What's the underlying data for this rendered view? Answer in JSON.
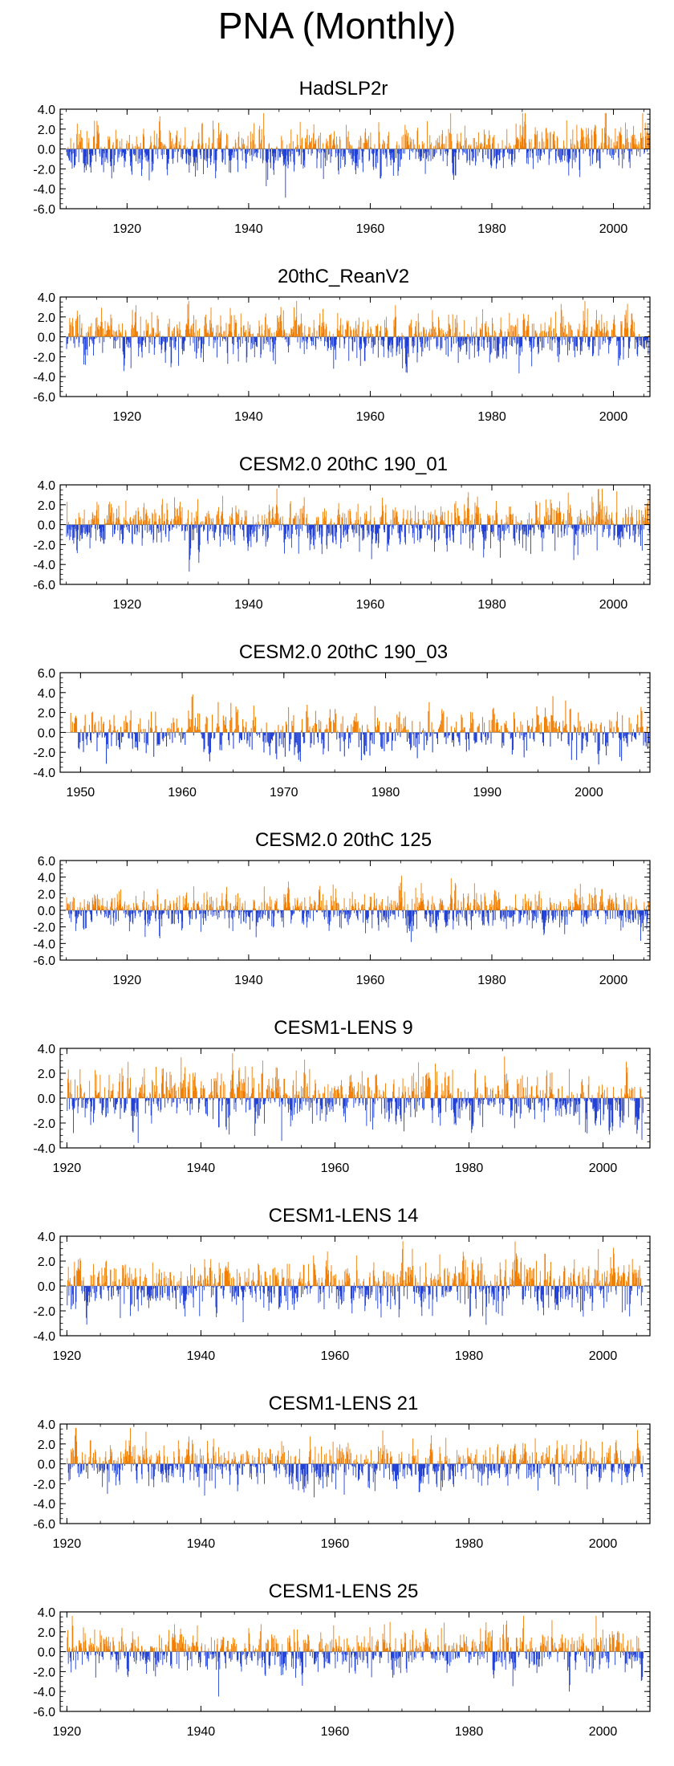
{
  "title": "PNA (Monthly)",
  "colors": {
    "positive": "#f07c00",
    "negative": "#1f3fd6",
    "axis": "#000000"
  },
  "chart_data": [
    {
      "type": "bar",
      "title": "HadSLP2r",
      "xlim": [
        1909,
        2006
      ],
      "ylim": [
        -6,
        4
      ],
      "yticks": [
        4,
        2,
        0,
        -2,
        -4,
        -6
      ],
      "yticklabels": [
        "4.0",
        "2.0",
        "0.0",
        "-2.0",
        "-4.0",
        "-6.0"
      ],
      "xticks": [
        1920,
        1940,
        1960,
        1980,
        2000
      ],
      "xticklabels": [
        "1920",
        "1940",
        "1960",
        "1980",
        "2000"
      ],
      "series": {
        "start_year": 1910,
        "end_year": 2005,
        "freq": "monthly",
        "amplitude": 1.3,
        "seed": 11
      }
    },
    {
      "type": "bar",
      "title": "20thC_ReanV2",
      "xlim": [
        1909,
        2006
      ],
      "ylim": [
        -6,
        4
      ],
      "yticks": [
        4,
        2,
        0,
        -2,
        -4,
        -6
      ],
      "yticklabels": [
        "4.0",
        "2.0",
        "0.0",
        "-2.0",
        "-4.0",
        "-6.0"
      ],
      "xticks": [
        1920,
        1940,
        1960,
        1980,
        2000
      ],
      "xticklabels": [
        "1920",
        "1940",
        "1960",
        "1980",
        "2000"
      ],
      "series": {
        "start_year": 1910,
        "end_year": 2005,
        "freq": "monthly",
        "amplitude": 1.3,
        "seed": 23
      }
    },
    {
      "type": "bar",
      "title": "CESM2.0 20thC 190_01",
      "xlim": [
        1909,
        2006
      ],
      "ylim": [
        -6,
        4
      ],
      "yticks": [
        4,
        2,
        0,
        -2,
        -4,
        -6
      ],
      "yticklabels": [
        "4.0",
        "2.0",
        "0.0",
        "-2.0",
        "-4.0",
        "-6.0"
      ],
      "xticks": [
        1920,
        1940,
        1960,
        1980,
        2000
      ],
      "xticklabels": [
        "1920",
        "1940",
        "1960",
        "1980",
        "2000"
      ],
      "series": {
        "start_year": 1910,
        "end_year": 2005,
        "freq": "monthly",
        "amplitude": 1.3,
        "seed": 37
      }
    },
    {
      "type": "bar",
      "title": "CESM2.0 20thC 190_03",
      "xlim": [
        1948,
        2006
      ],
      "ylim": [
        -4,
        6
      ],
      "yticks": [
        6,
        4,
        2,
        0,
        -2,
        -4
      ],
      "yticklabels": [
        "6.0",
        "4.0",
        "2.0",
        "0.0",
        "-2.0",
        "-4.0"
      ],
      "xticks": [
        1950,
        1960,
        1970,
        1980,
        1990,
        2000
      ],
      "xticklabels": [
        "1950",
        "1960",
        "1970",
        "1980",
        "1990",
        "2000"
      ],
      "series": {
        "start_year": 1949,
        "end_year": 2005,
        "freq": "monthly",
        "amplitude": 1.4,
        "seed": 41
      }
    },
    {
      "type": "bar",
      "title": "CESM2.0 20thC 125",
      "xlim": [
        1909,
        2006
      ],
      "ylim": [
        -6,
        6
      ],
      "yticks": [
        6,
        4,
        2,
        0,
        -2,
        -4,
        -6
      ],
      "yticklabels": [
        "6.0",
        "4.0",
        "2.0",
        "0.0",
        "-2.0",
        "-4.0",
        "-6.0"
      ],
      "xticks": [
        1920,
        1940,
        1960,
        1980,
        2000
      ],
      "xticklabels": [
        "1920",
        "1940",
        "1960",
        "1980",
        "2000"
      ],
      "series": {
        "start_year": 1910,
        "end_year": 2005,
        "freq": "monthly",
        "amplitude": 1.3,
        "seed": 53
      }
    },
    {
      "type": "bar",
      "title": "CESM1-LENS 9",
      "xlim": [
        1919,
        2007
      ],
      "ylim": [
        -4,
        4
      ],
      "yticks": [
        4,
        2,
        0,
        -2,
        -4
      ],
      "yticklabels": [
        "4.0",
        "2.0",
        "0.0",
        "-2.0",
        "-4.0"
      ],
      "xticks": [
        1920,
        1940,
        1960,
        1980,
        2000
      ],
      "xticklabels": [
        "1920",
        "1940",
        "1960",
        "1980",
        "2000"
      ],
      "series": {
        "start_year": 1920,
        "end_year": 2005,
        "freq": "monthly",
        "amplitude": 1.2,
        "seed": 67
      }
    },
    {
      "type": "bar",
      "title": "CESM1-LENS 14",
      "xlim": [
        1919,
        2007
      ],
      "ylim": [
        -4,
        4
      ],
      "yticks": [
        4,
        2,
        0,
        -2,
        -4
      ],
      "yticklabels": [
        "4.0",
        "2.0",
        "0.0",
        "-2.0",
        "-4.0"
      ],
      "xticks": [
        1920,
        1940,
        1960,
        1980,
        2000
      ],
      "xticklabels": [
        "1920",
        "1940",
        "1960",
        "1980",
        "2000"
      ],
      "series": {
        "start_year": 1920,
        "end_year": 2005,
        "freq": "monthly",
        "amplitude": 1.2,
        "seed": 79
      }
    },
    {
      "type": "bar",
      "title": "CESM1-LENS 21",
      "xlim": [
        1919,
        2007
      ],
      "ylim": [
        -6,
        4
      ],
      "yticks": [
        4,
        2,
        0,
        -2,
        -4,
        -6
      ],
      "yticklabels": [
        "4.0",
        "2.0",
        "0.0",
        "-2.0",
        "-4.0",
        "-6.0"
      ],
      "xticks": [
        1920,
        1940,
        1960,
        1980,
        2000
      ],
      "xticklabels": [
        "1920",
        "1940",
        "1960",
        "1980",
        "2000"
      ],
      "series": {
        "start_year": 1920,
        "end_year": 2005,
        "freq": "monthly",
        "amplitude": 1.2,
        "seed": 83
      }
    },
    {
      "type": "bar",
      "title": "CESM1-LENS 25",
      "xlim": [
        1919,
        2007
      ],
      "ylim": [
        -6,
        4
      ],
      "yticks": [
        4,
        2,
        0,
        -2,
        -4,
        -6
      ],
      "yticklabels": [
        "4.0",
        "2.0",
        "0.0",
        "-2.0",
        "-4.0",
        "-6.0"
      ],
      "xticks": [
        1920,
        1940,
        1960,
        1980,
        2000
      ],
      "xticklabels": [
        "1920",
        "1940",
        "1960",
        "1980",
        "2000"
      ],
      "series": {
        "start_year": 1920,
        "end_year": 2005,
        "freq": "monthly",
        "amplitude": 1.2,
        "seed": 97
      }
    }
  ]
}
